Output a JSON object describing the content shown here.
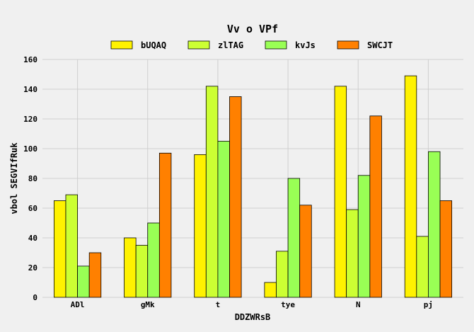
{
  "chart_data": {
    "type": "bar",
    "title": "Vv o VPf",
    "xlabel": "DDZWRsB",
    "ylabel": "vbol SEGVIfRuk",
    "categories": [
      "ADl",
      "gMk",
      "t",
      "tye",
      "N",
      "pj"
    ],
    "series": [
      {
        "name": "bUQAQ",
        "color": "#fff200",
        "values": [
          65,
          40,
          96,
          10,
          142,
          149
        ]
      },
      {
        "name": "zlTAG",
        "color": "#ccff33",
        "values": [
          69,
          35,
          142,
          31,
          59,
          41
        ]
      },
      {
        "name": "kvJs",
        "color": "#99ff55",
        "values": [
          21,
          50,
          105,
          80,
          82,
          98
        ]
      },
      {
        "name": "SWCJT",
        "color": "#ff8000",
        "values": [
          30,
          97,
          135,
          62,
          122,
          65
        ]
      }
    ],
    "ylim": [
      0,
      160
    ],
    "yticks": [
      0,
      20,
      40,
      60,
      80,
      100,
      120,
      140,
      160
    ],
    "grid": true,
    "legend_position": "top-center"
  }
}
